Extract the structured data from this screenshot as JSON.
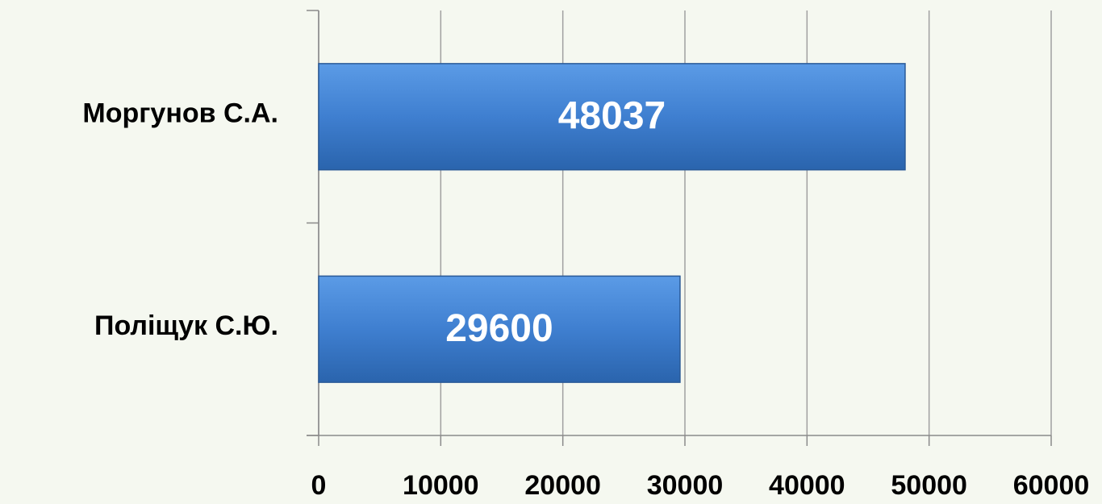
{
  "chart_data": {
    "type": "bar",
    "orientation": "horizontal",
    "categories": [
      "Моргунов С.А.",
      "Поліщук С.Ю."
    ],
    "values": [
      48037,
      29600
    ],
    "color": "#3f7fd0",
    "xlim": [
      0,
      60000
    ],
    "xticks": [
      0,
      10000,
      20000,
      30000,
      40000,
      50000,
      60000
    ],
    "grid": true,
    "data_labels": true
  }
}
